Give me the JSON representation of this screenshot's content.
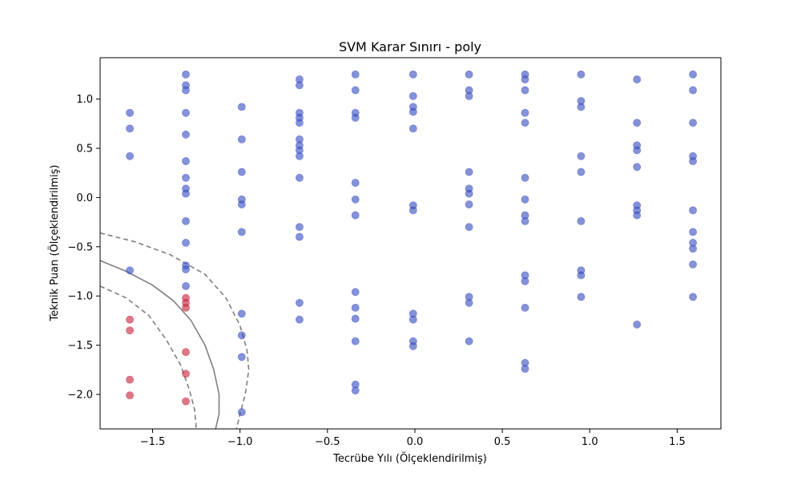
{
  "chart_data": {
    "type": "scatter",
    "title": "SVM Karar Sınırı - poly",
    "xlabel": "Tecrübe Yılı (Ölçeklendirilmiş)",
    "ylabel": "Teknik Puan (Ölçeklendirilmiş)",
    "xlim": [
      -1.8,
      1.75
    ],
    "ylim": [
      -2.35,
      1.42
    ],
    "x_ticks": [
      "−1.5",
      "−1.0",
      "−0.5",
      "0.0",
      "0.5",
      "1.0",
      "1.5"
    ],
    "x_tick_values": [
      -1.5,
      -1.0,
      -0.5,
      0.0,
      0.5,
      1.0,
      1.5
    ],
    "y_ticks": [
      "−2.0",
      "−1.5",
      "−1.0",
      "−0.5",
      "0.0",
      "0.5",
      "1.0"
    ],
    "y_tick_values": [
      -2.0,
      -1.5,
      -1.0,
      -0.5,
      0.0,
      0.5,
      1.0
    ],
    "grid": false,
    "colors": {
      "class_blue": "#3a4fc1",
      "class_red": "#c8243d",
      "boundary": "#7f7f7f"
    },
    "series": [
      {
        "color": "#3a4fc1",
        "points": [
          [
            -1.63,
            0.86
          ],
          [
            -1.63,
            0.7
          ],
          [
            -1.63,
            0.42
          ],
          [
            -1.63,
            -0.74
          ],
          [
            -1.31,
            1.25
          ],
          [
            -1.31,
            1.14
          ],
          [
            -1.31,
            1.09
          ],
          [
            -1.31,
            0.86
          ],
          [
            -1.31,
            0.64
          ],
          [
            -1.31,
            0.37
          ],
          [
            -1.31,
            0.2
          ],
          [
            -1.31,
            0.09
          ],
          [
            -1.31,
            0.04
          ],
          [
            -1.31,
            -0.24
          ],
          [
            -1.31,
            -0.46
          ],
          [
            -1.31,
            -0.69
          ],
          [
            -1.31,
            -0.73
          ],
          [
            -1.31,
            -0.9
          ],
          [
            -0.99,
            0.92
          ],
          [
            -0.99,
            0.59
          ],
          [
            -0.99,
            0.26
          ],
          [
            -0.99,
            -0.02
          ],
          [
            -0.99,
            -0.07
          ],
          [
            -0.99,
            -0.35
          ],
          [
            -0.99,
            -1.18
          ],
          [
            -0.99,
            -1.4
          ],
          [
            -0.99,
            -1.62
          ],
          [
            -0.99,
            -2.18
          ],
          [
            -0.66,
            1.2
          ],
          [
            -0.66,
            1.14
          ],
          [
            -0.66,
            0.86
          ],
          [
            -0.66,
            0.81
          ],
          [
            -0.66,
            0.76
          ],
          [
            -0.66,
            0.59
          ],
          [
            -0.66,
            0.53
          ],
          [
            -0.66,
            0.48
          ],
          [
            -0.66,
            0.42
          ],
          [
            -0.66,
            0.2
          ],
          [
            -0.66,
            -0.3
          ],
          [
            -0.66,
            -0.4
          ],
          [
            -0.66,
            -1.07
          ],
          [
            -0.66,
            -1.24
          ],
          [
            -0.34,
            1.25
          ],
          [
            -0.34,
            1.09
          ],
          [
            -0.34,
            0.86
          ],
          [
            -0.34,
            0.81
          ],
          [
            -0.34,
            0.15
          ],
          [
            -0.34,
            -0.02
          ],
          [
            -0.34,
            -0.18
          ],
          [
            -0.34,
            -0.96
          ],
          [
            -0.34,
            -1.12
          ],
          [
            -0.34,
            -1.23
          ],
          [
            -0.34,
            -1.46
          ],
          [
            -0.34,
            -1.9
          ],
          [
            -0.34,
            -1.96
          ],
          [
            -0.01,
            1.25
          ],
          [
            -0.01,
            1.03
          ],
          [
            -0.01,
            0.92
          ],
          [
            -0.01,
            0.87
          ],
          [
            -0.01,
            0.7
          ],
          [
            -0.01,
            -0.08
          ],
          [
            -0.01,
            -0.13
          ],
          [
            -0.01,
            -1.18
          ],
          [
            -0.01,
            -1.24
          ],
          [
            -0.01,
            -1.46
          ],
          [
            -0.01,
            -1.51
          ],
          [
            0.31,
            1.25
          ],
          [
            0.31,
            1.09
          ],
          [
            0.31,
            1.03
          ],
          [
            0.31,
            0.26
          ],
          [
            0.31,
            0.09
          ],
          [
            0.31,
            0.04
          ],
          [
            0.31,
            -0.07
          ],
          [
            0.31,
            -0.3
          ],
          [
            0.31,
            -1.01
          ],
          [
            0.31,
            -1.07
          ],
          [
            0.31,
            -1.46
          ],
          [
            0.63,
            1.25
          ],
          [
            0.63,
            1.2
          ],
          [
            0.63,
            1.09
          ],
          [
            0.63,
            0.86
          ],
          [
            0.63,
            0.76
          ],
          [
            0.63,
            0.2
          ],
          [
            0.63,
            -0.02
          ],
          [
            0.63,
            -0.18
          ],
          [
            0.63,
            -0.24
          ],
          [
            0.63,
            -0.79
          ],
          [
            0.63,
            -0.85
          ],
          [
            0.63,
            -1.12
          ],
          [
            0.63,
            -1.68
          ],
          [
            0.63,
            -1.74
          ],
          [
            0.95,
            1.25
          ],
          [
            0.95,
            0.98
          ],
          [
            0.95,
            0.92
          ],
          [
            0.95,
            0.42
          ],
          [
            0.95,
            0.26
          ],
          [
            0.95,
            -0.24
          ],
          [
            0.95,
            -0.74
          ],
          [
            0.95,
            -0.79
          ],
          [
            0.95,
            -1.01
          ],
          [
            1.27,
            1.2
          ],
          [
            1.27,
            0.76
          ],
          [
            1.27,
            0.53
          ],
          [
            1.27,
            0.48
          ],
          [
            1.27,
            0.31
          ],
          [
            1.27,
            -0.08
          ],
          [
            1.27,
            -0.13
          ],
          [
            1.27,
            -0.18
          ],
          [
            1.27,
            -1.29
          ],
          [
            1.59,
            1.25
          ],
          [
            1.59,
            1.09
          ],
          [
            1.59,
            0.76
          ],
          [
            1.59,
            0.42
          ],
          [
            1.59,
            0.37
          ],
          [
            1.59,
            -0.13
          ],
          [
            1.59,
            -0.35
          ],
          [
            1.59,
            -0.46
          ],
          [
            1.59,
            -0.52
          ],
          [
            1.59,
            -0.68
          ],
          [
            1.59,
            -1.01
          ]
        ]
      },
      {
        "color": "#c8243d",
        "points": [
          [
            -1.63,
            -1.24
          ],
          [
            -1.63,
            -1.35
          ],
          [
            -1.63,
            -1.85
          ],
          [
            -1.63,
            -2.01
          ],
          [
            -1.31,
            -1.02
          ],
          [
            -1.31,
            -1.07
          ],
          [
            -1.31,
            -1.12
          ],
          [
            -1.31,
            -1.57
          ],
          [
            -1.31,
            -1.79
          ],
          [
            -1.31,
            -2.07
          ]
        ]
      }
    ],
    "decision_boundary": {
      "level_0": [
        [
          -1.8,
          -0.64
        ],
        [
          -1.65,
          -0.75
        ],
        [
          -1.5,
          -0.89
        ],
        [
          -1.38,
          -1.05
        ],
        [
          -1.28,
          -1.25
        ],
        [
          -1.2,
          -1.5
        ],
        [
          -1.15,
          -1.75
        ],
        [
          -1.12,
          -2.0
        ],
        [
          -1.12,
          -2.2
        ],
        [
          -1.14,
          -2.35
        ]
      ],
      "margin_outer": [
        [
          -1.8,
          -0.36
        ],
        [
          -1.6,
          -0.45
        ],
        [
          -1.4,
          -0.58
        ],
        [
          -1.2,
          -0.78
        ],
        [
          -1.08,
          -1.02
        ],
        [
          -1.0,
          -1.3
        ],
        [
          -0.96,
          -1.55
        ],
        [
          -0.95,
          -1.75
        ],
        [
          -0.97,
          -2.0
        ],
        [
          -1.0,
          -2.2
        ],
        [
          -1.02,
          -2.35
        ]
      ],
      "margin_inner": [
        [
          -1.8,
          -0.9
        ],
        [
          -1.65,
          -1.02
        ],
        [
          -1.52,
          -1.2
        ],
        [
          -1.42,
          -1.45
        ],
        [
          -1.34,
          -1.7
        ],
        [
          -1.29,
          -1.95
        ],
        [
          -1.26,
          -2.15
        ],
        [
          -1.25,
          -2.35
        ]
      ]
    }
  }
}
